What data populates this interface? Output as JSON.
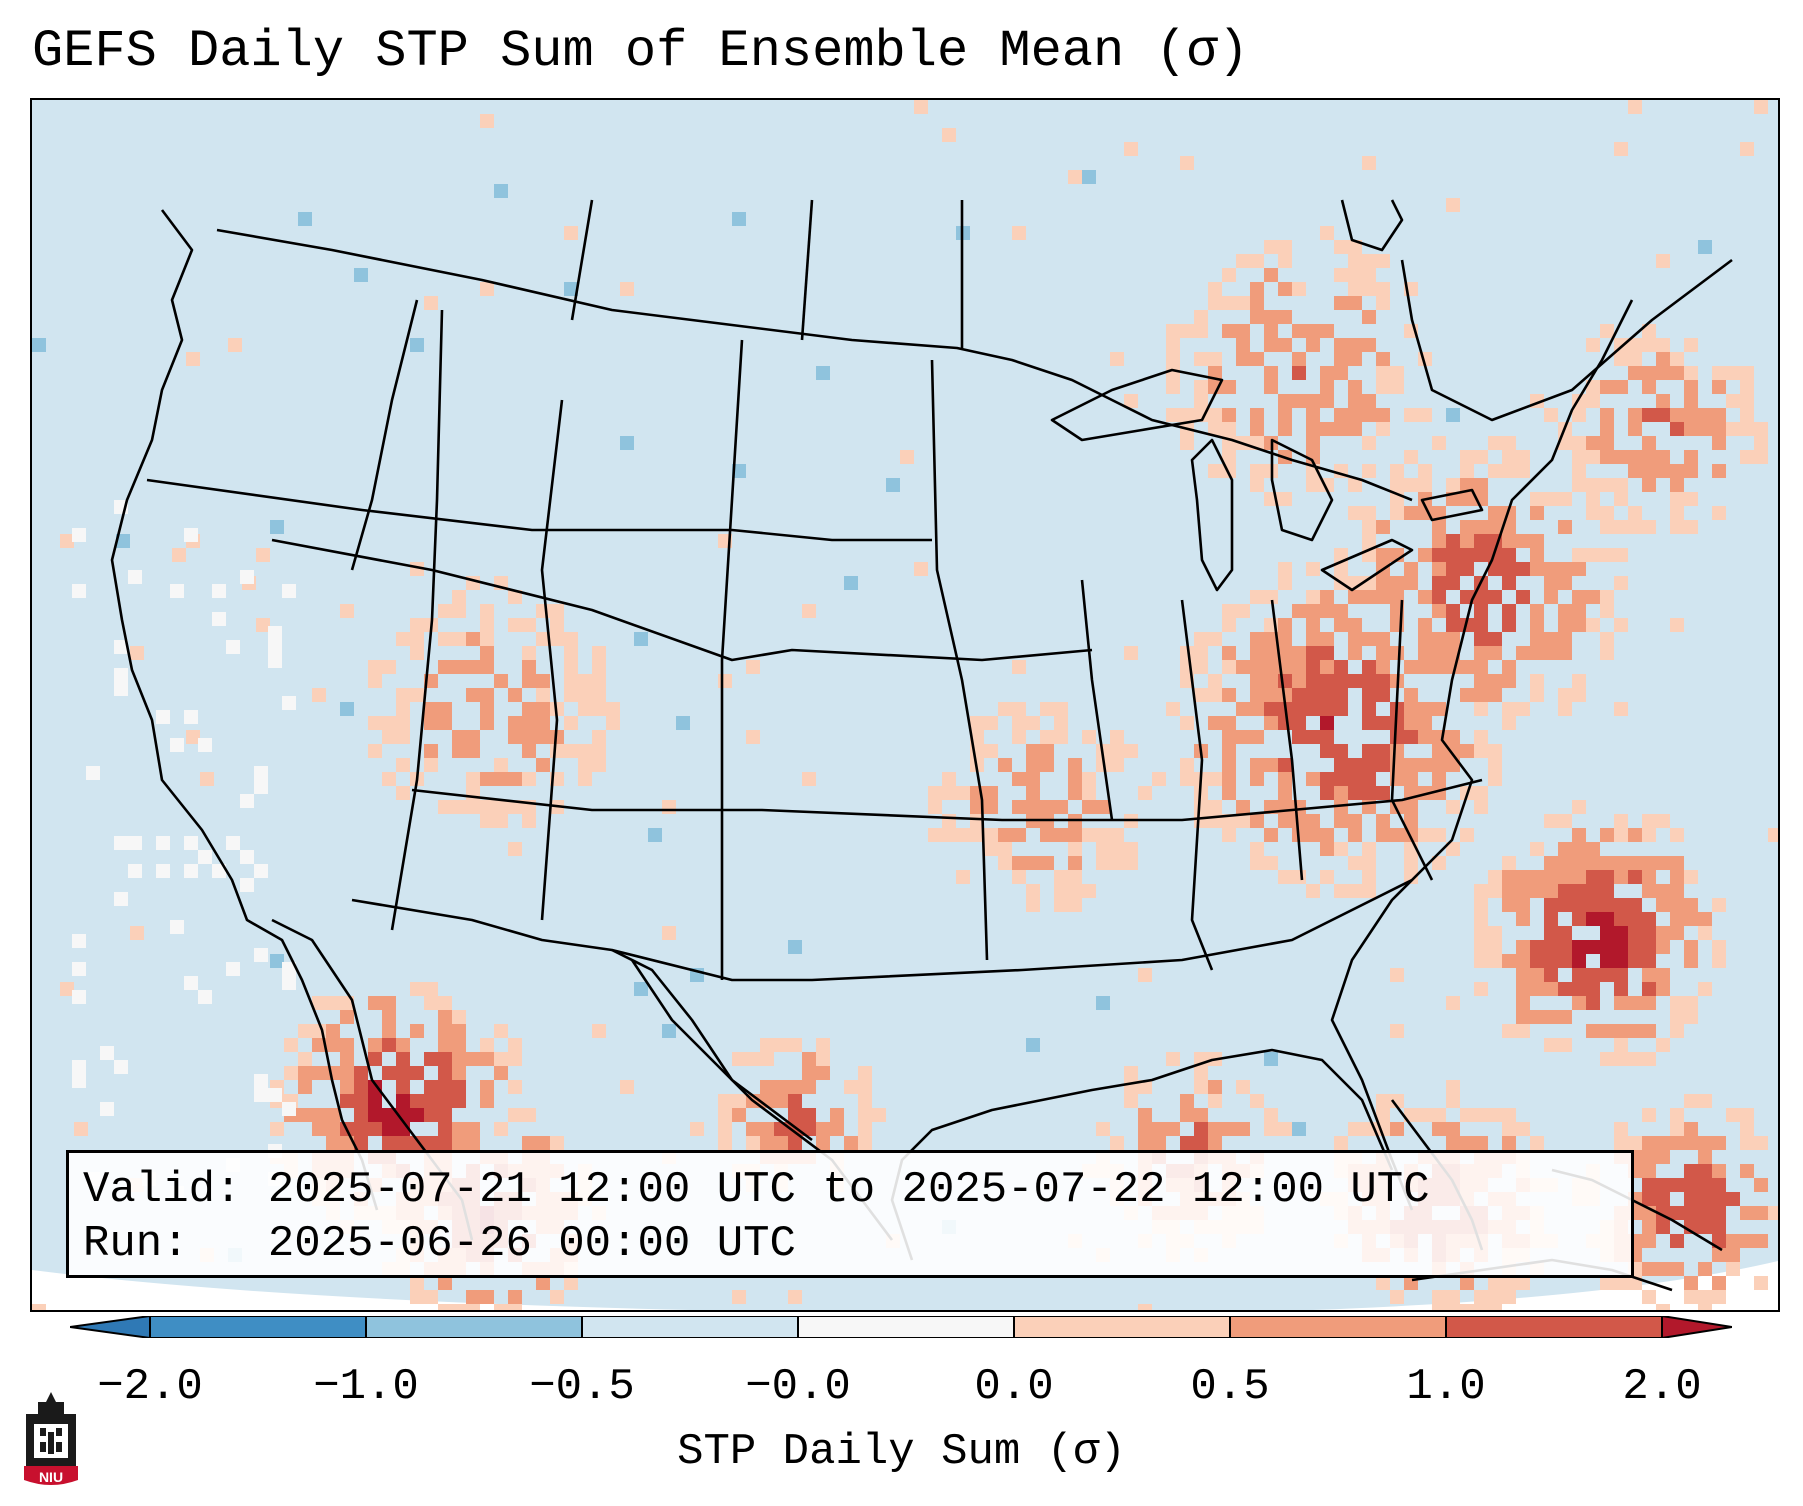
{
  "title": "GEFS Daily STP Sum of Ensemble Mean (σ)",
  "info": {
    "valid_line": "Valid: 2025-07-21 12:00 UTC to 2025-07-22 12:00 UTC",
    "run_line": "Run:   2025-06-26 00:00 UTC"
  },
  "colorbar": {
    "label": "STP Daily Sum (σ)",
    "ticks": [
      "−2.0",
      "−1.0",
      "−0.5",
      "−0.0",
      "0.0",
      "0.5",
      "1.0",
      "2.0"
    ],
    "colors": {
      "extend_low": "#2f79b5",
      "neg_2_1": "#3f8ec4",
      "neg_1_05": "#8fc3dd",
      "neg_05_0": "#d1e5f0",
      "zero": "#f7f7f7",
      "pos_0_05": "#fbd0b9",
      "pos_05_1": "#f09c7b",
      "pos_1_2": "#d25849",
      "extend_high": "#b2182b"
    }
  },
  "map": {
    "background_color": "#d1e5f0",
    "outside_color": "#ffffff",
    "border_color": "#000000"
  },
  "logo": {
    "text": "NIU",
    "color": "#c8102e"
  }
}
